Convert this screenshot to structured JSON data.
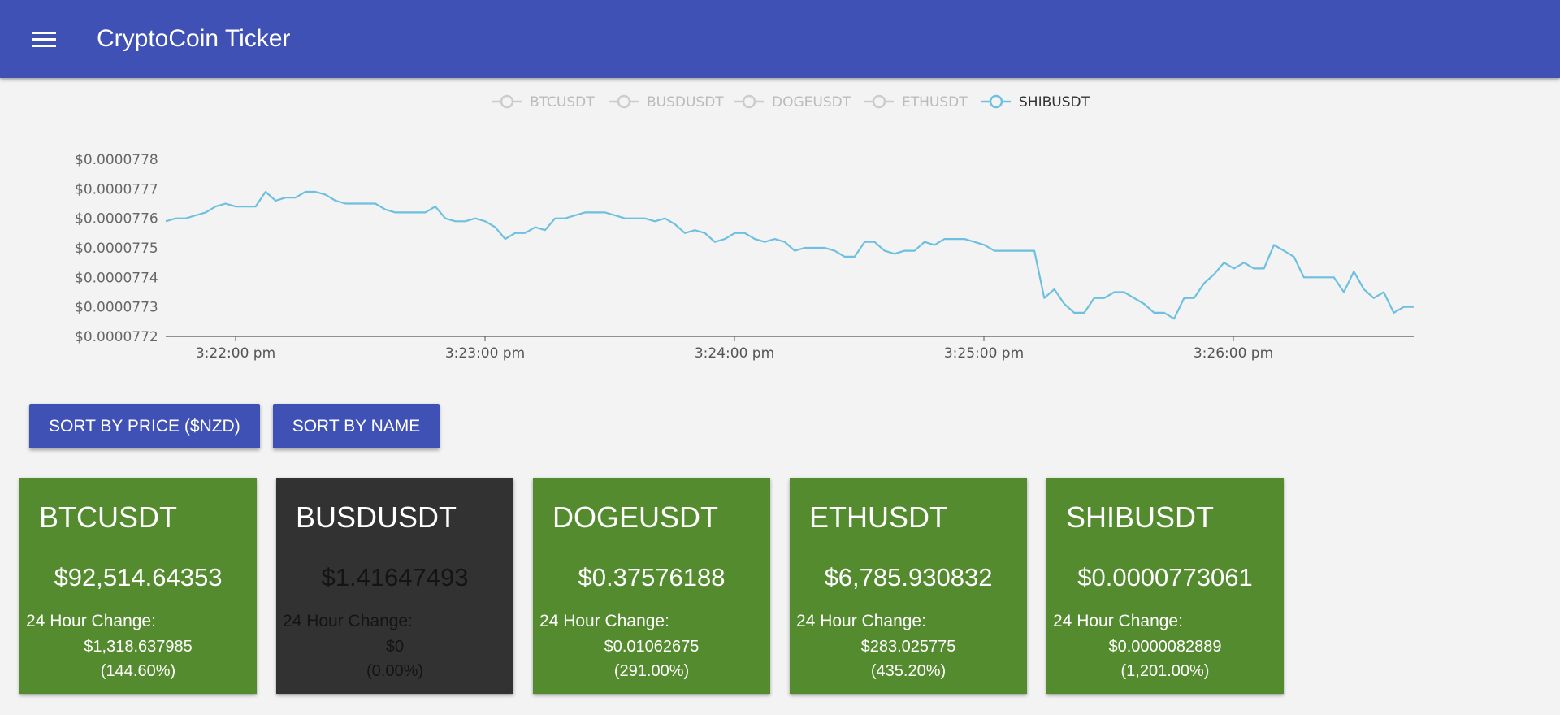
{
  "app": {
    "title": "CryptoCoin Ticker",
    "menu_icon": "hamburger-menu-icon"
  },
  "chart_data": {
    "type": "line",
    "legend_position": "top",
    "series": [
      {
        "name": "BTCUSDT",
        "active": false
      },
      {
        "name": "BUSDUSDT",
        "active": false
      },
      {
        "name": "DOGEUSDT",
        "active": false
      },
      {
        "name": "ETHUSDT",
        "active": false
      },
      {
        "name": "SHIBUSDT",
        "active": true,
        "color": "#6ec0e0",
        "values": [
          7.759e-05,
          7.76e-05,
          7.76e-05,
          7.761e-05,
          7.762e-05,
          7.764e-05,
          7.765e-05,
          7.764e-05,
          7.764e-05,
          7.764e-05,
          7.769e-05,
          7.766e-05,
          7.767e-05,
          7.767e-05,
          7.769e-05,
          7.769e-05,
          7.768e-05,
          7.766e-05,
          7.765e-05,
          7.765e-05,
          7.765e-05,
          7.765e-05,
          7.763e-05,
          7.762e-05,
          7.762e-05,
          7.762e-05,
          7.762e-05,
          7.764e-05,
          7.76e-05,
          7.759e-05,
          7.759e-05,
          7.76e-05,
          7.759e-05,
          7.757e-05,
          7.753e-05,
          7.755e-05,
          7.755e-05,
          7.757e-05,
          7.756e-05,
          7.76e-05,
          7.76e-05,
          7.761e-05,
          7.762e-05,
          7.762e-05,
          7.762e-05,
          7.761e-05,
          7.76e-05,
          7.76e-05,
          7.76e-05,
          7.759e-05,
          7.76e-05,
          7.758e-05,
          7.755e-05,
          7.756e-05,
          7.755e-05,
          7.752e-05,
          7.753e-05,
          7.755e-05,
          7.755e-05,
          7.753e-05,
          7.752e-05,
          7.753e-05,
          7.752e-05,
          7.749e-05,
          7.75e-05,
          7.75e-05,
          7.75e-05,
          7.749e-05,
          7.747e-05,
          7.747e-05,
          7.752e-05,
          7.752e-05,
          7.749e-05,
          7.748e-05,
          7.749e-05,
          7.749e-05,
          7.752e-05,
          7.751e-05,
          7.753e-05,
          7.753e-05,
          7.753e-05,
          7.752e-05,
          7.751e-05,
          7.749e-05,
          7.749e-05,
          7.749e-05,
          7.749e-05,
          7.749e-05,
          7.733e-05,
          7.736e-05,
          7.731e-05,
          7.728e-05,
          7.728e-05,
          7.733e-05,
          7.733e-05,
          7.735e-05,
          7.735e-05,
          7.733e-05,
          7.731e-05,
          7.728e-05,
          7.728e-05,
          7.726e-05,
          7.733e-05,
          7.733e-05,
          7.738e-05,
          7.741e-05,
          7.745e-05,
          7.743e-05,
          7.745e-05,
          7.743e-05,
          7.743e-05,
          7.751e-05,
          7.749e-05,
          7.747e-05,
          7.74e-05,
          7.74e-05,
          7.74e-05,
          7.74e-05,
          7.735e-05,
          7.742e-05,
          7.736e-05,
          7.733e-05,
          7.735e-05,
          7.728e-05,
          7.73e-05,
          7.73e-05
        ]
      }
    ],
    "x_ticks": [
      "3:22:00 pm",
      "3:23:00 pm",
      "3:24:00 pm",
      "3:25:00 pm",
      "3:26:00 pm"
    ],
    "y_ticks": [
      "$0.0000778",
      "$0.0000777",
      "$0.0000776",
      "$0.0000775",
      "$0.0000774",
      "$0.0000773",
      "$0.0000772"
    ],
    "ylim": [
      7.72e-05,
      7.78e-05
    ],
    "grid": false
  },
  "buttons": {
    "sort_price": "SORT BY PRICE ($NZD)",
    "sort_name": "SORT BY NAME"
  },
  "cards": [
    {
      "name": "BTCUSDT",
      "price": "$92,514.64353",
      "change_label": "24 Hour Change:",
      "change_abs": "$1,318.637985",
      "change_pct": "(144.60%)",
      "color": "#548b2f"
    },
    {
      "name": "BUSDUSDT",
      "price": "$1.41647493",
      "change_label": "24 Hour Change:",
      "change_abs": "$0",
      "change_pct": "(0.00%)",
      "color": "#323232"
    },
    {
      "name": "DOGEUSDT",
      "price": "$0.37576188",
      "change_label": "24 Hour Change:",
      "change_abs": "$0.01062675",
      "change_pct": "(291.00%)",
      "color": "#548b2f"
    },
    {
      "name": "ETHUSDT",
      "price": "$6,785.930832",
      "change_label": "24 Hour Change:",
      "change_abs": "$283.025775",
      "change_pct": "(435.20%)",
      "color": "#548b2f"
    },
    {
      "name": "SHIBUSDT",
      "price": "$0.0000773061",
      "change_label": "24 Hour Change:",
      "change_abs": "$0.0000082889",
      "change_pct": "(1,201.00%)",
      "color": "#548b2f"
    }
  ]
}
